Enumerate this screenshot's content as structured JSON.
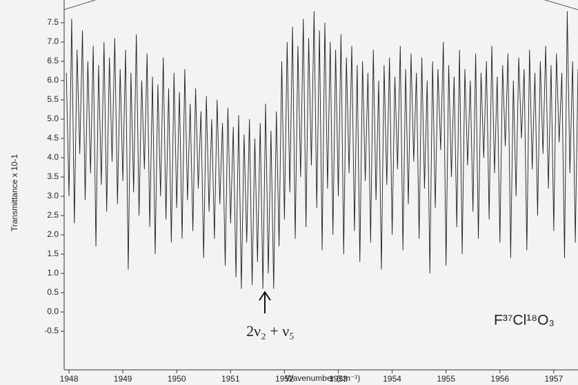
{
  "chart_data": {
    "type": "line",
    "x_label": "Wavenumber (cm⁻¹)",
    "y_label": "Transmittance x 10-1",
    "annotations": [
      "2ν₂ + ν₅",
      "F³⁷Cl¹⁸O₃"
    ],
    "color": "#1e1e1e",
    "xlim": [
      1947.91,
      1957.45
    ],
    "ylim": [
      -1.5,
      8.0
    ],
    "xticks": [
      1948,
      1949,
      1950,
      1951,
      1952,
      1953,
      1954,
      1955,
      1956,
      1957
    ],
    "yticks": [
      -0.5,
      {
        "value": 0,
        "label": "0.0"
      },
      0.5,
      {
        "value": 1,
        "label": "1.0"
      },
      1.5,
      {
        "value": 2,
        "label": "2.0"
      },
      2.5,
      {
        "value": 3,
        "label": "3.0"
      },
      3.5,
      {
        "value": 4,
        "label": "4.0"
      },
      4.5,
      {
        "value": 5,
        "label": "5.0"
      },
      5.5,
      {
        "value": 6,
        "label": "6.0"
      },
      6.5,
      {
        "value": 7,
        "label": "7.0"
      },
      7.5
    ],
    "x": [
      1947.95,
      1948.0,
      1948.05,
      1948.1,
      1948.15,
      1948.2,
      1948.25,
      1948.3,
      1948.35,
      1948.4,
      1948.45,
      1948.5,
      1948.55,
      1948.6,
      1948.65,
      1948.7,
      1948.75,
      1948.8,
      1948.85,
      1948.9,
      1948.95,
      1949.0,
      1949.05,
      1949.1,
      1949.15,
      1949.2,
      1949.25,
      1949.3,
      1949.35,
      1949.4,
      1949.45,
      1949.5,
      1949.55,
      1949.6,
      1949.65,
      1949.7,
      1949.75,
      1949.8,
      1949.85,
      1949.9,
      1949.95,
      1950.0,
      1950.05,
      1950.1,
      1950.15,
      1950.2,
      1950.25,
      1950.3,
      1950.35,
      1950.4,
      1950.45,
      1950.5,
      1950.55,
      1950.6,
      1950.65,
      1950.7,
      1950.75,
      1950.8,
      1950.85,
      1950.9,
      1950.95,
      1951.0,
      1951.05,
      1951.1,
      1951.15,
      1951.2,
      1951.25,
      1951.3,
      1951.35,
      1951.4,
      1951.45,
      1951.5,
      1951.55,
      1951.6,
      1951.65,
      1951.7,
      1951.75,
      1951.8,
      1951.85,
      1951.9,
      1951.95,
      1952.0,
      1952.05,
      1952.1,
      1952.15,
      1952.2,
      1952.25,
      1952.3,
      1952.35,
      1952.4,
      1952.45,
      1952.5,
      1952.55,
      1952.6,
      1952.65,
      1952.7,
      1952.75,
      1952.8,
      1952.85,
      1952.9,
      1952.95,
      1953.0,
      1953.05,
      1953.1,
      1953.15,
      1953.2,
      1953.25,
      1953.3,
      1953.35,
      1953.4,
      1953.45,
      1953.5,
      1953.55,
      1953.6,
      1953.65,
      1953.7,
      1953.75,
      1953.8,
      1953.85,
      1953.9,
      1953.95,
      1954.0,
      1954.05,
      1954.1,
      1954.15,
      1954.2,
      1954.25,
      1954.3,
      1954.35,
      1954.4,
      1954.45,
      1954.5,
      1954.55,
      1954.6,
      1954.65,
      1954.7,
      1954.75,
      1954.8,
      1954.85,
      1954.9,
      1954.95,
      1955.0,
      1955.05,
      1955.1,
      1955.15,
      1955.2,
      1955.25,
      1955.3,
      1955.35,
      1955.4,
      1955.45,
      1955.5,
      1955.55,
      1955.6,
      1955.65,
      1955.7,
      1955.75,
      1955.8,
      1955.85,
      1955.9,
      1955.95,
      1956.0,
      1956.05,
      1956.1,
      1956.15,
      1956.2,
      1956.25,
      1956.3,
      1956.35,
      1956.4,
      1956.45,
      1956.5,
      1956.55,
      1956.6,
      1956.65,
      1956.7,
      1956.75,
      1956.8,
      1956.85,
      1956.9,
      1956.95,
      1957.0,
      1957.05,
      1957.1,
      1957.15,
      1957.2,
      1957.25,
      1957.3,
      1957.35,
      1957.4,
      1957.45
    ],
    "values": [
      6.2,
      3.0,
      7.6,
      2.3,
      6.8,
      4.1,
      7.3,
      2.9,
      6.5,
      3.6,
      6.9,
      1.7,
      6.4,
      3.3,
      7.0,
      2.6,
      6.6,
      3.9,
      7.1,
      2.8,
      6.3,
      3.4,
      6.8,
      1.1,
      6.2,
      3.1,
      7.2,
      2.5,
      6.0,
      3.7,
      6.7,
      2.2,
      6.1,
      1.5,
      5.9,
      3.0,
      6.6,
      2.4,
      5.8,
      1.8,
      6.2,
      2.7,
      5.7,
      1.9,
      6.3,
      2.9,
      5.4,
      2.1,
      5.8,
      3.2,
      5.2,
      1.4,
      5.6,
      2.6,
      5.0,
      1.9,
      5.5,
      2.8,
      4.9,
      1.2,
      5.3,
      2.3,
      4.8,
      0.9,
      5.1,
      0.6,
      4.6,
      1.8,
      5.0,
      0.7,
      4.5,
      1.3,
      4.9,
      0.6,
      5.4,
      1.0,
      4.7,
      0.6,
      5.2,
      1.7,
      6.5,
      2.4,
      7.0,
      3.1,
      7.4,
      1.9,
      6.9,
      3.5,
      7.6,
      2.2,
      7.1,
      3.8,
      7.8,
      2.7,
      7.3,
      1.6,
      7.5,
      3.2,
      7.0,
      2.0,
      6.8,
      3.0,
      7.2,
      1.5,
      6.6,
      3.6,
      6.9,
      2.1,
      6.4,
      1.3,
      6.5,
      3.4,
      6.2,
      1.8,
      6.8,
      2.9,
      6.0,
      1.1,
      6.4,
      3.3,
      6.6,
      2.0,
      6.1,
      3.7,
      6.9,
      1.6,
      6.3,
      2.8,
      6.7,
      3.9,
      6.2,
      1.9,
      6.6,
      3.2,
      6.0,
      1.0,
      6.5,
      2.7,
      6.3,
      4.2,
      7.0,
      1.2,
      6.4,
      3.5,
      6.1,
      2.2,
      6.8,
      1.5,
      6.3,
      3.8,
      6.0,
      2.6,
      6.7,
      1.9,
      6.2,
      4.0,
      6.5,
      2.4,
      6.9,
      3.6,
      6.1,
      1.8,
      6.4,
      4.3,
      6.7,
      1.4,
      6.0,
      3.0,
      6.6,
      4.5,
      6.3,
      1.6,
      6.8,
      3.7,
      6.2,
      2.5,
      6.5,
      4.1,
      6.9,
      3.2,
      6.4,
      2.1,
      6.7,
      4.4,
      6.2,
      1.4,
      7.8,
      3.6,
      6.5,
      1.8,
      6.3
    ]
  }
}
